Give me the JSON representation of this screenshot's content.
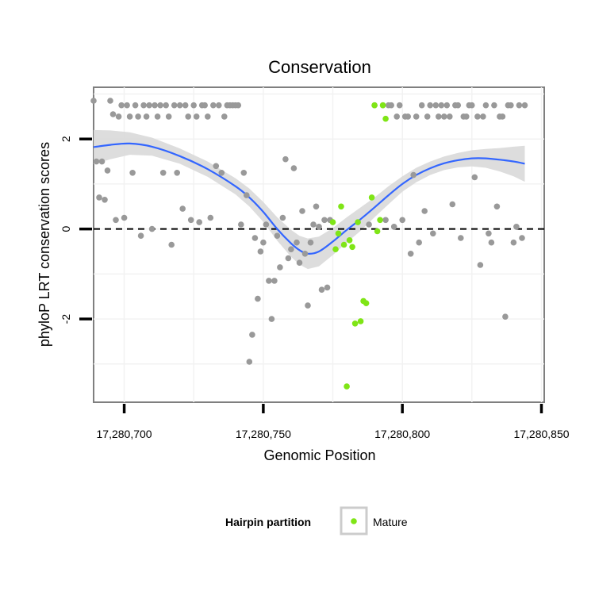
{
  "chart_data": {
    "type": "scatter",
    "title": "Conservation",
    "xlabel": "Genomic Position",
    "ylabel": "phyloP LRT conservation scores",
    "xlim": [
      17280689,
      17280851
    ],
    "ylim": [
      -3.85,
      3.15
    ],
    "x_ticks": [
      17280700,
      17280750,
      17280800,
      17280850
    ],
    "x_tick_labels": [
      "17,280,700",
      "17,280,750",
      "17,280,800",
      "17,280,850"
    ],
    "y_ticks": [
      -2,
      0,
      2
    ],
    "y_tick_labels": [
      "-2",
      "0",
      "2"
    ],
    "reference_line": {
      "y": 0,
      "style": "dashed"
    },
    "legend": {
      "title": "Hairpin partition",
      "entries": [
        {
          "label": "Mature",
          "color": "#7fe516"
        }
      ],
      "position": "bottom"
    },
    "colors": {
      "other": "#999999",
      "mature": "#7fe516",
      "smooth": "#3366ff",
      "band": "#d9d9d9"
    },
    "series": [
      {
        "name": "Other",
        "points": [
          [
            17280689,
            2.85
          ],
          [
            17280690,
            1.5
          ],
          [
            17280691,
            0.7
          ],
          [
            17280692,
            1.5
          ],
          [
            17280693,
            0.65
          ],
          [
            17280694,
            1.3
          ],
          [
            17280695,
            2.85
          ],
          [
            17280696,
            2.55
          ],
          [
            17280697,
            0.2
          ],
          [
            17280698,
            2.5
          ],
          [
            17280699,
            2.75
          ],
          [
            17280700,
            0.25
          ],
          [
            17280701,
            2.75
          ],
          [
            17280702,
            2.5
          ],
          [
            17280703,
            1.25
          ],
          [
            17280704,
            2.75
          ],
          [
            17280705,
            2.5
          ],
          [
            17280706,
            -0.15
          ],
          [
            17280707,
            2.75
          ],
          [
            17280708,
            2.5
          ],
          [
            17280709,
            2.75
          ],
          [
            17280710,
            0.0
          ],
          [
            17280711,
            2.75
          ],
          [
            17280712,
            2.5
          ],
          [
            17280713,
            2.75
          ],
          [
            17280714,
            1.25
          ],
          [
            17280715,
            2.75
          ],
          [
            17280716,
            2.5
          ],
          [
            17280717,
            -0.35
          ],
          [
            17280718,
            2.75
          ],
          [
            17280719,
            1.25
          ],
          [
            17280720,
            2.75
          ],
          [
            17280721,
            0.45
          ],
          [
            17280722,
            2.75
          ],
          [
            17280723,
            2.5
          ],
          [
            17280724,
            0.2
          ],
          [
            17280725,
            2.75
          ],
          [
            17280726,
            2.5
          ],
          [
            17280727,
            0.15
          ],
          [
            17280728,
            2.75
          ],
          [
            17280729,
            2.75
          ],
          [
            17280730,
            2.5
          ],
          [
            17280731,
            0.25
          ],
          [
            17280732,
            2.75
          ],
          [
            17280733,
            1.4
          ],
          [
            17280734,
            2.75
          ],
          [
            17280735,
            1.25
          ],
          [
            17280736,
            2.5
          ],
          [
            17280737,
            2.75
          ],
          [
            17280738,
            2.75
          ],
          [
            17280739,
            2.75
          ],
          [
            17280740,
            2.75
          ],
          [
            17280741,
            2.75
          ],
          [
            17280742,
            0.1
          ],
          [
            17280743,
            1.25
          ],
          [
            17280744,
            0.75
          ],
          [
            17280745,
            -2.95
          ],
          [
            17280746,
            -2.35
          ],
          [
            17280747,
            -0.2
          ],
          [
            17280748,
            -1.55
          ],
          [
            17280749,
            -0.5
          ],
          [
            17280750,
            -0.3
          ],
          [
            17280751,
            0.1
          ],
          [
            17280752,
            -1.15
          ],
          [
            17280753,
            -2.0
          ],
          [
            17280754,
            -1.15
          ],
          [
            17280755,
            -0.15
          ],
          [
            17280756,
            -0.85
          ],
          [
            17280757,
            0.25
          ],
          [
            17280758,
            1.55
          ],
          [
            17280759,
            -0.65
          ],
          [
            17280760,
            -0.45
          ],
          [
            17280761,
            1.35
          ],
          [
            17280762,
            -0.3
          ],
          [
            17280763,
            -0.75
          ],
          [
            17280764,
            0.4
          ],
          [
            17280765,
            -0.55
          ],
          [
            17280766,
            -1.7
          ],
          [
            17280767,
            -0.3
          ],
          [
            17280768,
            0.1
          ],
          [
            17280769,
            0.5
          ],
          [
            17280770,
            0.05
          ],
          [
            17280771,
            -1.35
          ],
          [
            17280772,
            0.2
          ],
          [
            17280773,
            -1.3
          ],
          [
            17280774,
            0.2
          ],
          [
            17280788,
            0.1
          ],
          [
            17280790,
            2.75
          ],
          [
            17280793,
            2.75
          ],
          [
            17280794,
            0.2
          ],
          [
            17280795,
            2.75
          ],
          [
            17280796,
            2.75
          ],
          [
            17280797,
            0.05
          ],
          [
            17280798,
            2.5
          ],
          [
            17280799,
            2.75
          ],
          [
            17280800,
            0.2
          ],
          [
            17280801,
            2.5
          ],
          [
            17280802,
            2.5
          ],
          [
            17280803,
            -0.55
          ],
          [
            17280804,
            1.2
          ],
          [
            17280805,
            2.5
          ],
          [
            17280806,
            -0.3
          ],
          [
            17280807,
            2.75
          ],
          [
            17280808,
            0.4
          ],
          [
            17280809,
            2.5
          ],
          [
            17280810,
            2.75
          ],
          [
            17280811,
            -0.1
          ],
          [
            17280812,
            2.75
          ],
          [
            17280813,
            2.5
          ],
          [
            17280814,
            2.75
          ],
          [
            17280815,
            2.5
          ],
          [
            17280816,
            2.75
          ],
          [
            17280817,
            2.5
          ],
          [
            17280818,
            0.55
          ],
          [
            17280819,
            2.75
          ],
          [
            17280820,
            2.75
          ],
          [
            17280821,
            -0.2
          ],
          [
            17280822,
            2.5
          ],
          [
            17280823,
            2.5
          ],
          [
            17280824,
            2.75
          ],
          [
            17280825,
            2.75
          ],
          [
            17280826,
            1.15
          ],
          [
            17280827,
            2.5
          ],
          [
            17280828,
            -0.8
          ],
          [
            17280829,
            2.5
          ],
          [
            17280830,
            2.75
          ],
          [
            17280831,
            -0.1
          ],
          [
            17280832,
            -0.3
          ],
          [
            17280833,
            2.75
          ],
          [
            17280834,
            0.5
          ],
          [
            17280835,
            2.5
          ],
          [
            17280836,
            2.5
          ],
          [
            17280837,
            -1.95
          ],
          [
            17280838,
            2.75
          ],
          [
            17280839,
            2.75
          ],
          [
            17280840,
            -0.3
          ],
          [
            17280841,
            0.05
          ],
          [
            17280842,
            2.75
          ],
          [
            17280843,
            -0.2
          ],
          [
            17280844,
            2.75
          ]
        ]
      },
      {
        "name": "Mature",
        "points": [
          [
            17280775,
            0.15
          ],
          [
            17280776,
            -0.45
          ],
          [
            17280777,
            -0.1
          ],
          [
            17280778,
            0.5
          ],
          [
            17280779,
            -0.35
          ],
          [
            17280780,
            -3.5
          ],
          [
            17280781,
            -0.25
          ],
          [
            17280782,
            -0.4
          ],
          [
            17280783,
            -2.1
          ],
          [
            17280784,
            0.15
          ],
          [
            17280785,
            -2.05
          ],
          [
            17280786,
            -1.6
          ],
          [
            17280787,
            -1.65
          ],
          [
            17280789,
            0.7
          ],
          [
            17280790,
            2.75
          ],
          [
            17280791,
            -0.05
          ],
          [
            17280792,
            0.2
          ],
          [
            17280793,
            2.75
          ],
          [
            17280794,
            2.45
          ]
        ]
      }
    ],
    "smooth": {
      "x": [
        17280689,
        17280695,
        17280702,
        17280710,
        17280720,
        17280730,
        17280740,
        17280745,
        17280750,
        17280755,
        17280760,
        17280763,
        17280766,
        17280770,
        17280775,
        17280780,
        17280785,
        17280790,
        17280795,
        17280800,
        17280805,
        17280810,
        17280815,
        17280820,
        17280825,
        17280830,
        17280835,
        17280840,
        17280844
      ],
      "y": [
        1.82,
        1.87,
        1.9,
        1.83,
        1.62,
        1.33,
        0.95,
        0.7,
        0.38,
        0.0,
        -0.32,
        -0.47,
        -0.55,
        -0.5,
        -0.28,
        -0.02,
        0.22,
        0.48,
        0.75,
        1.0,
        1.2,
        1.35,
        1.46,
        1.53,
        1.57,
        1.57,
        1.54,
        1.5,
        1.45
      ],
      "se": [
        0.38,
        0.32,
        0.25,
        0.2,
        0.17,
        0.17,
        0.18,
        0.2,
        0.22,
        0.26,
        0.3,
        0.32,
        0.34,
        0.33,
        0.3,
        0.28,
        0.26,
        0.22,
        0.2,
        0.17,
        0.16,
        0.15,
        0.15,
        0.16,
        0.18,
        0.21,
        0.26,
        0.33,
        0.4
      ]
    }
  }
}
